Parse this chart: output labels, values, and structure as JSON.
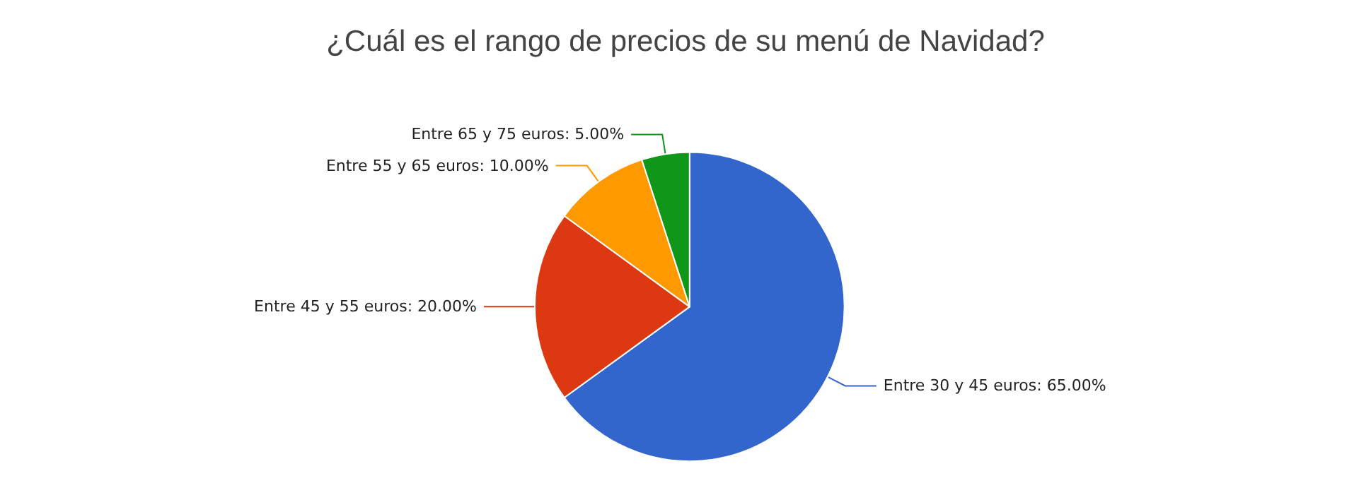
{
  "chart_data": {
    "type": "pie",
    "title": "¿Cuál es el rango de precios de su menú de Navidad?",
    "categories": [
      "Entre 30 y 45 euros",
      "Entre 45 y 55 euros",
      "Entre 55 y 65 euros",
      "Entre 65 y 75 euros"
    ],
    "values": [
      65,
      20,
      10,
      5
    ],
    "value_labels": [
      "65.00%",
      "20.00%",
      "10.00%",
      "5.00%"
    ],
    "colors": [
      "#3366cc",
      "#dc3912",
      "#ff9900",
      "#109618"
    ],
    "legend": false
  }
}
